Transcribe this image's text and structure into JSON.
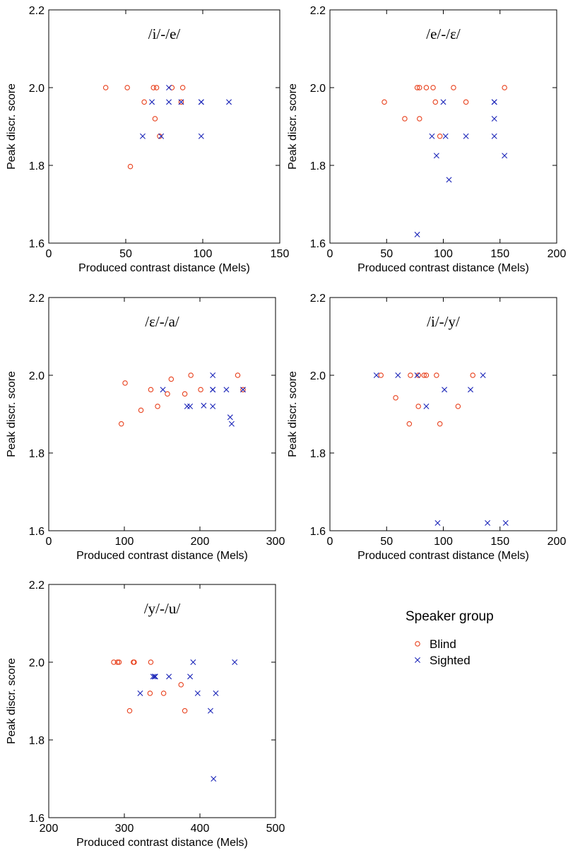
{
  "colors": {
    "blind": "#e8401c",
    "sighted": "#1a24b8",
    "axis": "#000000"
  },
  "legend": {
    "title": "Speaker group",
    "entries": [
      {
        "label": "Blind",
        "marker": "circle",
        "color": "#e8401c"
      },
      {
        "label": "Sighted",
        "marker": "x",
        "color": "#1a24b8"
      }
    ]
  },
  "chart_data": [
    {
      "type": "scatter",
      "title": "/i/-/e/",
      "xlabel": "Produced contrast distance (Mels)",
      "ylabel": "Peak discr. score",
      "xlim": [
        0,
        150
      ],
      "xticks": [
        0,
        50,
        100,
        150
      ],
      "ylim": [
        1.6,
        2.2
      ],
      "yticks": [
        1.6,
        1.8,
        2.0,
        2.2
      ],
      "series": [
        {
          "name": "Blind",
          "marker": "circle",
          "color": "#e8401c",
          "points": [
            [
              37,
              2.0
            ],
            [
              51,
              2.0
            ],
            [
              68,
              2.0
            ],
            [
              70,
              2.0
            ],
            [
              80,
              2.0
            ],
            [
              87,
              2.0
            ],
            [
              62,
              1.963
            ],
            [
              69,
              1.92
            ],
            [
              72,
              1.875
            ],
            [
              86,
              1.963
            ],
            [
              53,
              1.797
            ]
          ]
        },
        {
          "name": "Sighted",
          "marker": "x",
          "color": "#1a24b8",
          "points": [
            [
              78,
              2.0
            ],
            [
              67,
              1.963
            ],
            [
              78,
              1.963
            ],
            [
              86,
              1.963
            ],
            [
              99,
              1.963
            ],
            [
              99,
              1.963
            ],
            [
              117,
              1.963
            ],
            [
              61,
              1.875
            ],
            [
              73,
              1.875
            ],
            [
              99,
              1.875
            ]
          ]
        }
      ]
    },
    {
      "type": "scatter",
      "title": "/e/-/ɛ/",
      "xlabel": "Produced contrast distance (Mels)",
      "ylabel": "Peak discr. score",
      "xlim": [
        0,
        200
      ],
      "xticks": [
        0,
        50,
        100,
        150,
        200
      ],
      "ylim": [
        1.6,
        2.2
      ],
      "yticks": [
        1.6,
        1.8,
        2.0,
        2.2
      ],
      "series": [
        {
          "name": "Blind",
          "marker": "circle",
          "color": "#e8401c",
          "points": [
            [
              77,
              2.0
            ],
            [
              79,
              2.0
            ],
            [
              85,
              2.0
            ],
            [
              91,
              2.0
            ],
            [
              109,
              2.0
            ],
            [
              154,
              2.0
            ],
            [
              48,
              1.963
            ],
            [
              93,
              1.963
            ],
            [
              120,
              1.963
            ],
            [
              66,
              1.92
            ],
            [
              79,
              1.92
            ],
            [
              97,
              1.875
            ]
          ]
        },
        {
          "name": "Sighted",
          "marker": "x",
          "color": "#1a24b8",
          "points": [
            [
              100,
              1.963
            ],
            [
              145,
              1.963
            ],
            [
              145,
              1.963
            ],
            [
              145,
              1.92
            ],
            [
              90,
              1.875
            ],
            [
              102,
              1.875
            ],
            [
              120,
              1.875
            ],
            [
              145,
              1.875
            ],
            [
              94,
              1.825
            ],
            [
              154,
              1.825
            ],
            [
              105,
              1.763
            ],
            [
              77,
              1.622
            ]
          ]
        }
      ]
    },
    {
      "type": "scatter",
      "title": "/ɛ/-/a/",
      "xlabel": "Produced contrast distance (Mels)",
      "ylabel": "Peak discr. score",
      "xlim": [
        0,
        300
      ],
      "xticks": [
        0,
        100,
        200,
        300
      ],
      "ylim": [
        1.6,
        2.2
      ],
      "yticks": [
        1.6,
        1.8,
        2.0,
        2.2
      ],
      "series": [
        {
          "name": "Blind",
          "marker": "circle",
          "color": "#e8401c",
          "points": [
            [
              188,
              2.0
            ],
            [
              250,
              2.0
            ],
            [
              101,
              1.98
            ],
            [
              162,
              1.99
            ],
            [
              135,
              1.963
            ],
            [
              201,
              1.963
            ],
            [
              157,
              1.952
            ],
            [
              180,
              1.952
            ],
            [
              122,
              1.91
            ],
            [
              144,
              1.92
            ],
            [
              96,
              1.875
            ],
            [
              257,
              1.963
            ]
          ]
        },
        {
          "name": "Sighted",
          "marker": "x",
          "color": "#1a24b8",
          "points": [
            [
              217,
              2.0
            ],
            [
              151,
              1.963
            ],
            [
              217,
              1.963
            ],
            [
              217,
              1.963
            ],
            [
              235,
              1.963
            ],
            [
              257,
              1.963
            ],
            [
              183,
              1.92
            ],
            [
              187,
              1.92
            ],
            [
              205,
              1.922
            ],
            [
              217,
              1.92
            ],
            [
              240,
              1.892
            ],
            [
              242,
              1.875
            ]
          ]
        }
      ]
    },
    {
      "type": "scatter",
      "title": "/i/-/y/",
      "xlabel": "Produced contrast distance (Mels)",
      "ylabel": "Peak discr. score",
      "xlim": [
        0,
        200
      ],
      "xticks": [
        0,
        50,
        100,
        150,
        200
      ],
      "ylim": [
        1.6,
        2.2
      ],
      "yticks": [
        1.6,
        1.8,
        2.0,
        2.2
      ],
      "series": [
        {
          "name": "Blind",
          "marker": "circle",
          "color": "#e8401c",
          "points": [
            [
              45,
              2.0
            ],
            [
              71,
              2.0
            ],
            [
              78,
              2.0
            ],
            [
              83,
              2.0
            ],
            [
              85,
              2.0
            ],
            [
              94,
              2.0
            ],
            [
              126,
              2.0
            ],
            [
              58,
              1.942
            ],
            [
              78,
              1.92
            ],
            [
              113,
              1.92
            ],
            [
              70,
              1.875
            ],
            [
              97,
              1.875
            ]
          ]
        },
        {
          "name": "Sighted",
          "marker": "x",
          "color": "#1a24b8",
          "points": [
            [
              41,
              2.0
            ],
            [
              60,
              2.0
            ],
            [
              77,
              2.0
            ],
            [
              135,
              2.0
            ],
            [
              101,
              1.963
            ],
            [
              124,
              1.963
            ],
            [
              85,
              1.92
            ],
            [
              95,
              1.62
            ],
            [
              139,
              1.62
            ],
            [
              155,
              1.62
            ]
          ]
        }
      ]
    },
    {
      "type": "scatter",
      "title": "/y/-/u/",
      "xlabel": "Produced contrast distance (Mels)",
      "ylabel": "Peak discr. score",
      "xlim": [
        200,
        500
      ],
      "xticks": [
        200,
        300,
        400,
        500
      ],
      "ylim": [
        1.6,
        2.2
      ],
      "yticks": [
        1.6,
        1.8,
        2.0,
        2.2
      ],
      "series": [
        {
          "name": "Blind",
          "marker": "circle",
          "color": "#e8401c",
          "points": [
            [
              286,
              2.0
            ],
            [
              291,
              2.0
            ],
            [
              293,
              2.0
            ],
            [
              312,
              2.0
            ],
            [
              313,
              2.0
            ],
            [
              335,
              2.0
            ],
            [
              375,
              1.942
            ],
            [
              334,
              1.92
            ],
            [
              352,
              1.92
            ],
            [
              307,
              1.875
            ],
            [
              380,
              1.875
            ]
          ]
        },
        {
          "name": "Sighted",
          "marker": "x",
          "color": "#1a24b8",
          "points": [
            [
              391,
              2.0
            ],
            [
              446,
              2.0
            ],
            [
              338,
              1.963
            ],
            [
              340,
              1.963
            ],
            [
              341,
              1.963
            ],
            [
              359,
              1.963
            ],
            [
              387,
              1.963
            ],
            [
              321,
              1.92
            ],
            [
              397,
              1.92
            ],
            [
              421,
              1.92
            ],
            [
              414,
              1.875
            ],
            [
              418,
              1.7
            ]
          ]
        }
      ]
    }
  ]
}
